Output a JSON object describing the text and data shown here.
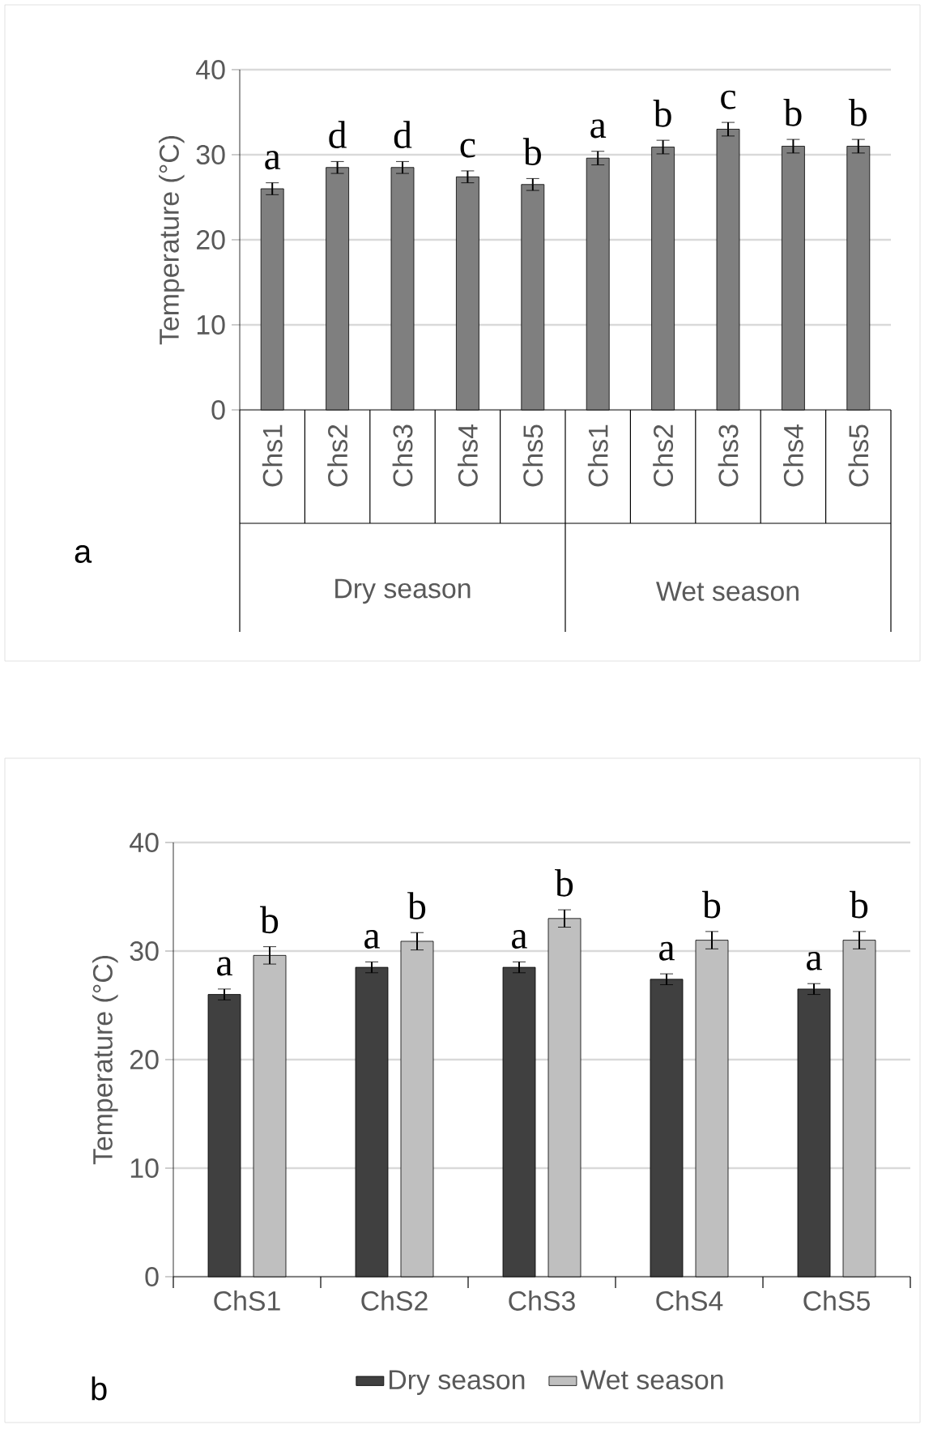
{
  "chart_data": [
    {
      "type": "bar",
      "title": "a",
      "ylabel": "Temperature (°C)",
      "categories": [
        "Chs1",
        "Chs2",
        "Chs3",
        "Chs4",
        "Chs5",
        "Chs1",
        "Chs2",
        "Chs3",
        "Chs4",
        "Chs5"
      ],
      "values": [
        26.0,
        28.5,
        28.5,
        27.4,
        26.5,
        29.6,
        30.9,
        33.0,
        31.0,
        31.0
      ],
      "errors": [
        0.7,
        0.7,
        0.7,
        0.7,
        0.7,
        0.8,
        0.8,
        0.8,
        0.8,
        0.8
      ],
      "color": "#7f7f7f",
      "ylim": [
        0,
        40
      ],
      "yticks": [
        0,
        10,
        20,
        30,
        40
      ],
      "grid": "y",
      "annotations": [
        "a",
        "d",
        "d",
        "c",
        "b",
        "a",
        "b",
        "c",
        "b",
        "b",
        "Dry season",
        "Wet season"
      ]
    },
    {
      "type": "bar",
      "title": "b",
      "ylabel": "Temperature (°C)",
      "categories": [
        "ChS1",
        "ChS2",
        "ChS3",
        "ChS4",
        "ChS5"
      ],
      "series": [
        {
          "name": "Dry season",
          "color": "#404040",
          "values": [
            26.0,
            28.5,
            28.5,
            27.4,
            26.5
          ],
          "errors": [
            0.5,
            0.5,
            0.5,
            0.5,
            0.5
          ]
        },
        {
          "name": "Wet season",
          "color": "#bfbfbf",
          "values": [
            29.6,
            30.9,
            33.0,
            31.0,
            31.0
          ],
          "errors": [
            0.8,
            0.8,
            0.8,
            0.8,
            0.8
          ]
        }
      ],
      "ylim": [
        0,
        40
      ],
      "yticks": [
        0,
        10,
        20,
        30,
        40
      ],
      "grid": "y",
      "legend": "bottom",
      "annotations": [
        "a",
        "b",
        "a",
        "b",
        "a",
        "b",
        "a",
        "b",
        "a",
        "b"
      ]
    }
  ]
}
